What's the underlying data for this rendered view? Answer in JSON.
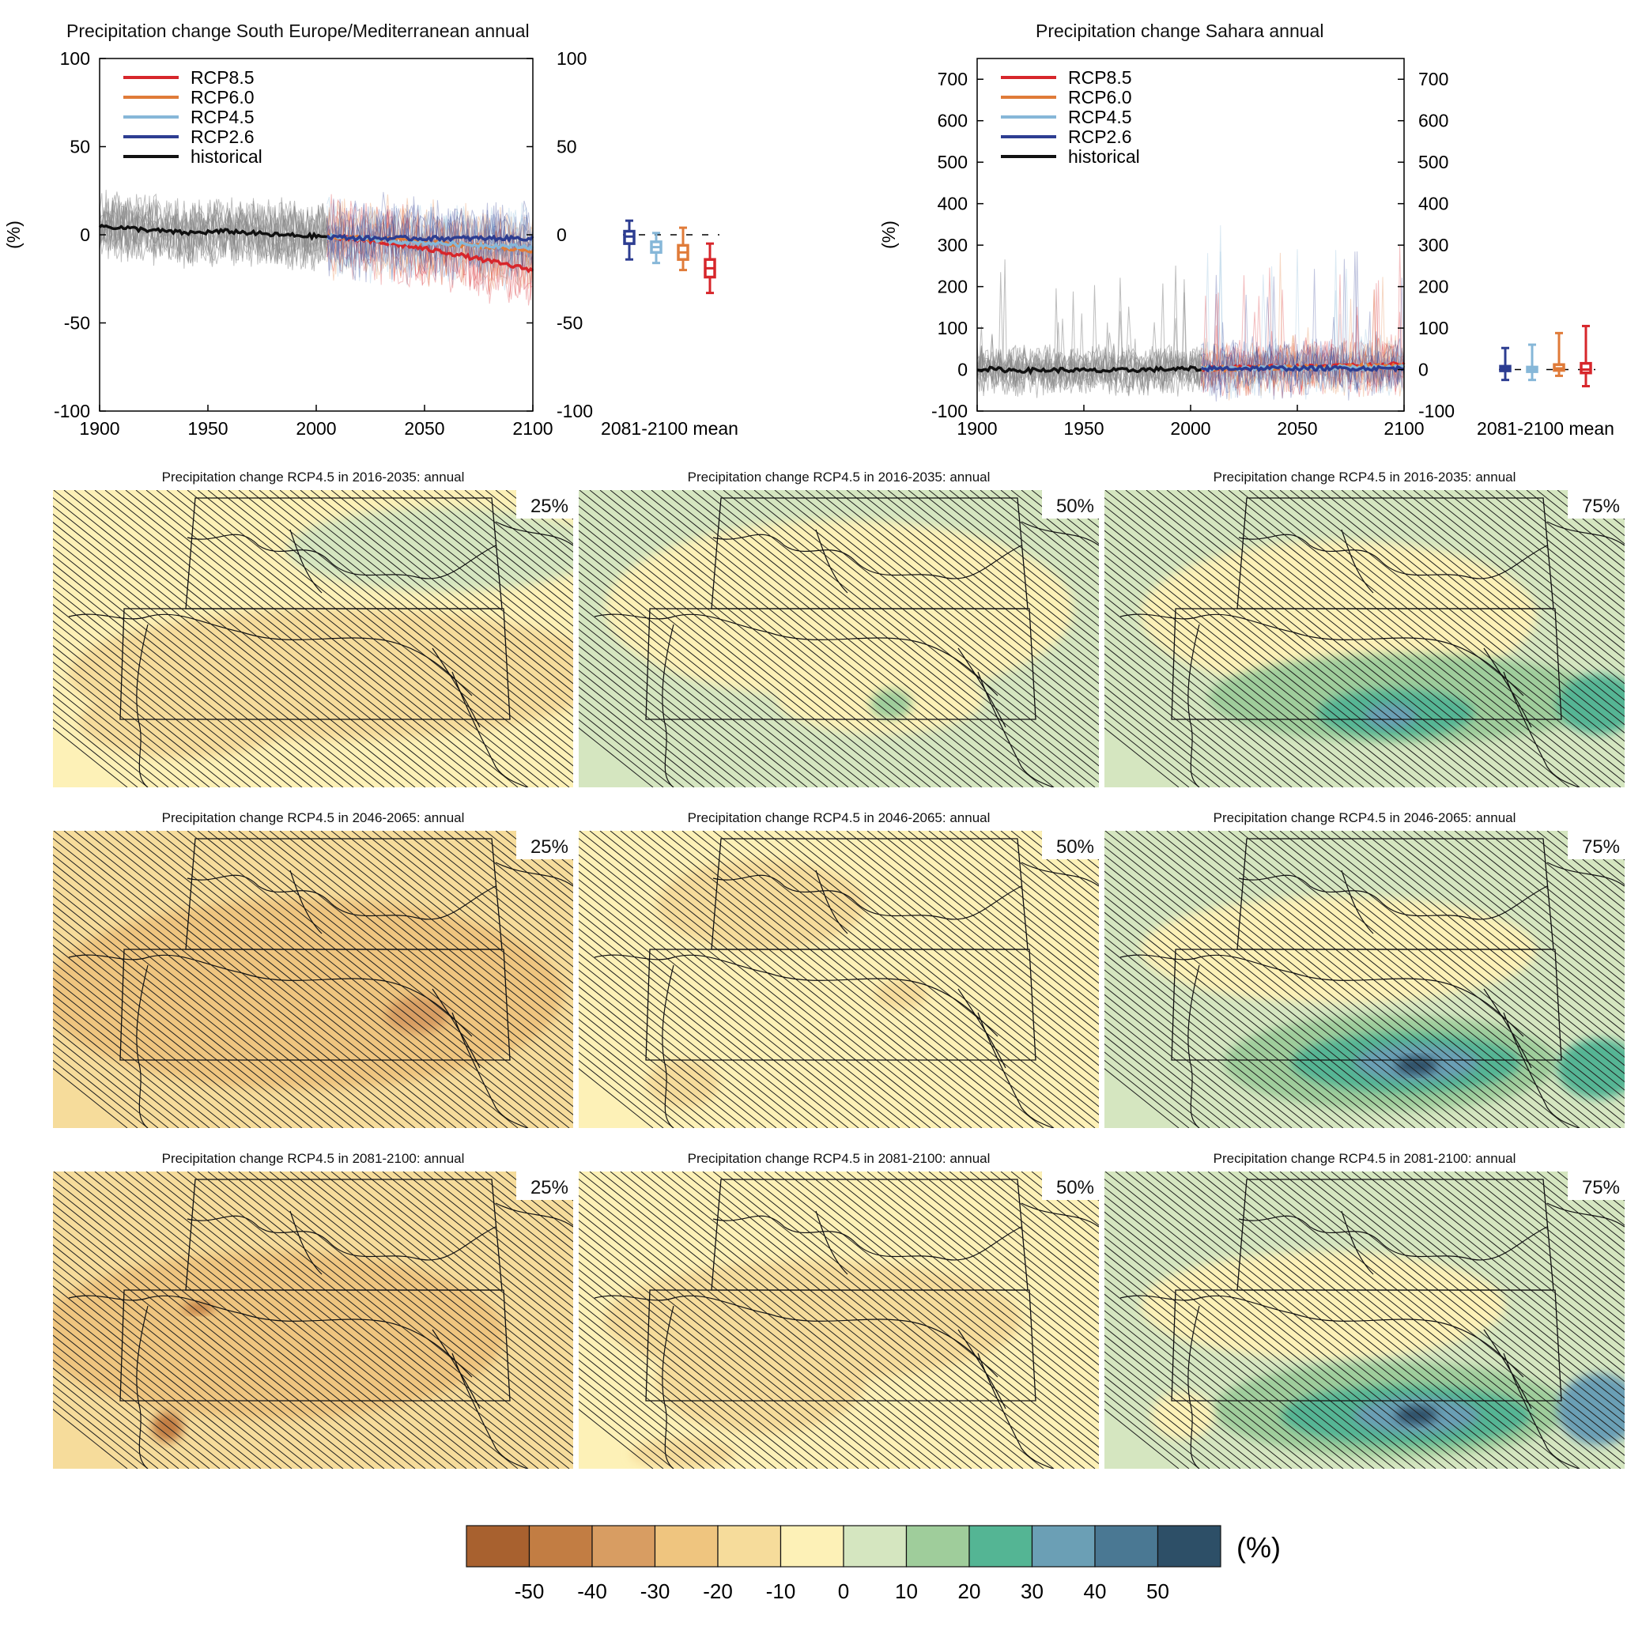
{
  "figure": {
    "units_label": "(%)",
    "colorbar": {
      "colors": [
        "#a8612f",
        "#c27d43",
        "#d89d62",
        "#efc57f",
        "#f6dc9b",
        "#fdf1b7",
        "#d5e6c0",
        "#9fcd9b",
        "#54b594",
        "#6b9fb5",
        "#4a7893",
        "#2d4f67"
      ],
      "ticks": [
        "-50",
        "-40",
        "-30",
        "-20",
        "-10",
        "0",
        "10",
        "20",
        "30",
        "40",
        "50"
      ],
      "unit": "(%)"
    }
  },
  "chart_data": [
    {
      "type": "line",
      "title": "Precipitation change South Europe/Mediterranean annual",
      "ylabel": "(%)",
      "xlim": [
        1900,
        2100
      ],
      "ylim": [
        -100,
        100
      ],
      "x_ticks": [
        "1900",
        "1950",
        "2000",
        "2050",
        "2100"
      ],
      "y_ticks": [
        "-100",
        "-50",
        "0",
        "50",
        "100"
      ],
      "series": [
        {
          "name": "RCP8.5",
          "color": "#d7262b",
          "x": [
            2005,
            2020,
            2040,
            2060,
            2080,
            2100
          ],
          "values": [
            -1,
            -3,
            -6,
            -10,
            -15,
            -20
          ]
        },
        {
          "name": "RCP6.0",
          "color": "#e07b39",
          "x": [
            2005,
            2020,
            2040,
            2060,
            2080,
            2100
          ],
          "values": [
            -1,
            -2,
            -3,
            -5,
            -7,
            -9
          ]
        },
        {
          "name": "RCP4.5",
          "color": "#86b7d8",
          "x": [
            2005,
            2020,
            2040,
            2060,
            2080,
            2100
          ],
          "values": [
            -1,
            -2,
            -4,
            -5,
            -6,
            -7
          ]
        },
        {
          "name": "RCP2.6",
          "color": "#2d3d91",
          "x": [
            2005,
            2020,
            2040,
            2060,
            2080,
            2100
          ],
          "values": [
            -1,
            -2,
            -2,
            -2,
            -2,
            -2
          ]
        },
        {
          "name": "historical",
          "color": "#111111",
          "x": [
            1900,
            1920,
            1940,
            1960,
            1980,
            2005
          ],
          "values": [
            5,
            3,
            1,
            2,
            0,
            -1
          ]
        }
      ],
      "boxplot_label": "2081-2100 mean",
      "boxplots": [
        {
          "name": "RCP2.6",
          "color": "#2d3d91",
          "min": -14,
          "q1": -5,
          "median": -1,
          "q3": 2,
          "max": 8
        },
        {
          "name": "RCP4.5",
          "color": "#86b7d8",
          "min": -16,
          "q1": -10,
          "median": -7,
          "q3": -4,
          "max": 1
        },
        {
          "name": "RCP6.0",
          "color": "#e07b39",
          "min": -20,
          "q1": -14,
          "median": -10,
          "q3": -6,
          "max": 4
        },
        {
          "name": "RCP8.5",
          "color": "#d7262b",
          "min": -33,
          "q1": -24,
          "median": -19,
          "q3": -14,
          "max": -5
        }
      ]
    },
    {
      "type": "line",
      "title": "Precipitation change Sahara annual",
      "ylabel": "(%)",
      "xlim": [
        1900,
        2100
      ],
      "ylim": [
        -100,
        750
      ],
      "x_ticks": [
        "1900",
        "1950",
        "2000",
        "2050",
        "2100"
      ],
      "y_ticks": [
        "-100",
        "0",
        "100",
        "200",
        "300",
        "400",
        "500",
        "600",
        "700"
      ],
      "series": [
        {
          "name": "RCP8.5",
          "color": "#d7262b",
          "x": [
            2005,
            2020,
            2040,
            2060,
            2080,
            2100
          ],
          "values": [
            2,
            4,
            6,
            8,
            10,
            12
          ]
        },
        {
          "name": "RCP6.0",
          "color": "#e07b39",
          "x": [
            2005,
            2020,
            2040,
            2060,
            2080,
            2100
          ],
          "values": [
            2,
            3,
            5,
            6,
            7,
            8
          ]
        },
        {
          "name": "RCP4.5",
          "color": "#86b7d8",
          "x": [
            2005,
            2020,
            2040,
            2060,
            2080,
            2100
          ],
          "values": [
            2,
            3,
            4,
            4,
            5,
            5
          ]
        },
        {
          "name": "RCP2.6",
          "color": "#2d3d91",
          "x": [
            2005,
            2020,
            2040,
            2060,
            2080,
            2100
          ],
          "values": [
            2,
            3,
            3,
            3,
            3,
            3
          ]
        },
        {
          "name": "historical",
          "color": "#111111",
          "x": [
            1900,
            1920,
            1940,
            1960,
            1980,
            2005
          ],
          "values": [
            2,
            -2,
            -1,
            -3,
            0,
            2
          ]
        }
      ],
      "boxplot_label": "2081-2100 mean",
      "boxplots": [
        {
          "name": "RCP2.6",
          "color": "#2d3d91",
          "min": -25,
          "q1": -3,
          "median": 2,
          "q3": 8,
          "max": 52
        },
        {
          "name": "RCP4.5",
          "color": "#86b7d8",
          "min": -25,
          "q1": -5,
          "median": 0,
          "q3": 6,
          "max": 60
        },
        {
          "name": "RCP6.0",
          "color": "#e07b39",
          "min": -15,
          "q1": -2,
          "median": 3,
          "q3": 12,
          "max": 88
        },
        {
          "name": "RCP8.5",
          "color": "#d7262b",
          "min": -40,
          "q1": -8,
          "median": 0,
          "q3": 15,
          "max": 105
        }
      ]
    },
    {
      "type": "heatmap",
      "maps": [
        {
          "title": "Precipitation change RCP4.5 in 2016-2035: annual",
          "percentile": "25%"
        },
        {
          "title": "Precipitation change RCP4.5 in 2016-2035: annual",
          "percentile": "50%"
        },
        {
          "title": "Precipitation change RCP4.5 in 2016-2035: annual",
          "percentile": "75%"
        },
        {
          "title": "Precipitation change RCP4.5 in 2046-2065: annual",
          "percentile": "25%"
        },
        {
          "title": "Precipitation change RCP4.5 in 2046-2065: annual",
          "percentile": "50%"
        },
        {
          "title": "Precipitation change RCP4.5 in 2046-2065: annual",
          "percentile": "75%"
        },
        {
          "title": "Precipitation change RCP4.5 in 2081-2100: annual",
          "percentile": "25%"
        },
        {
          "title": "Precipitation change RCP4.5 in 2081-2100: annual",
          "percentile": "50%"
        },
        {
          "title": "Precipitation change RCP4.5 in 2081-2100: annual",
          "percentile": "75%"
        }
      ]
    }
  ]
}
